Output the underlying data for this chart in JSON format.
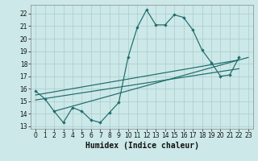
{
  "xlabel": "Humidex (Indice chaleur)",
  "bg_color": "#cce8e8",
  "grid_color": "#aacccc",
  "line_color": "#1f6b6b",
  "xlim": [
    -0.5,
    23.5
  ],
  "ylim": [
    12.8,
    22.7
  ],
  "xticks": [
    0,
    1,
    2,
    3,
    4,
    5,
    6,
    7,
    8,
    9,
    10,
    11,
    12,
    13,
    14,
    15,
    16,
    17,
    18,
    19,
    20,
    21,
    22,
    23
  ],
  "yticks": [
    13,
    14,
    15,
    16,
    17,
    18,
    19,
    20,
    21,
    22
  ],
  "main_x": [
    0,
    1,
    2,
    3,
    4,
    5,
    6,
    7,
    8,
    9,
    10,
    11,
    12,
    13,
    14,
    15,
    16,
    17,
    18,
    19,
    20,
    21,
    22
  ],
  "main_y": [
    15.8,
    15.2,
    14.2,
    13.3,
    14.5,
    14.2,
    13.5,
    13.3,
    14.1,
    14.9,
    18.5,
    20.9,
    22.3,
    21.1,
    21.1,
    21.9,
    21.7,
    20.7,
    19.1,
    18.1,
    17.0,
    17.1,
    18.5
  ],
  "trend1_x": [
    0.0,
    22.0
  ],
  "trend1_y": [
    15.5,
    18.3
  ],
  "trend2_x": [
    0.0,
    22.0
  ],
  "trend2_y": [
    15.1,
    17.6
  ],
  "trend3_x": [
    2.0,
    23.0
  ],
  "trend3_y": [
    14.2,
    18.5
  ],
  "xlabel_fontsize": 7,
  "tick_fontsize": 5.5
}
